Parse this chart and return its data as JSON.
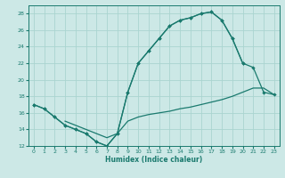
{
  "xlabel": "Humidex (Indice chaleur)",
  "bg_color": "#cce8e6",
  "grid_color": "#aad4d0",
  "line_color": "#1a7a6e",
  "xlim": [
    -0.5,
    23.5
  ],
  "ylim": [
    12,
    29
  ],
  "xticks": [
    0,
    1,
    2,
    3,
    4,
    5,
    6,
    7,
    8,
    9,
    10,
    11,
    12,
    13,
    14,
    15,
    16,
    17,
    18,
    19,
    20,
    21,
    22,
    23
  ],
  "yticks": [
    12,
    14,
    16,
    18,
    20,
    22,
    24,
    26,
    28
  ],
  "series1_x": [
    0,
    1,
    2,
    3,
    4,
    5,
    6,
    7,
    8,
    9,
    10,
    11,
    12,
    13,
    14,
    15,
    16,
    17,
    18,
    19,
    20
  ],
  "series1_y": [
    17,
    16.5,
    15.5,
    14.5,
    14,
    13.5,
    12.5,
    12,
    13.5,
    18.5,
    22,
    23.5,
    25,
    26.5,
    27.2,
    27.5,
    28,
    28.2,
    27.2,
    25,
    22
  ],
  "series2_x": [
    0,
    1,
    2,
    3,
    4,
    5,
    6,
    7,
    8,
    9,
    10,
    11,
    12,
    13,
    14,
    15,
    16,
    17,
    18,
    19,
    20,
    21,
    22,
    23
  ],
  "series2_y": [
    17,
    16.5,
    15.5,
    14.5,
    14,
    13.5,
    12.5,
    12,
    13.5,
    18.5,
    22,
    23.5,
    25,
    26.5,
    27.2,
    27.5,
    28,
    28.2,
    27.2,
    25,
    22,
    21.5,
    18.5,
    18.2
  ],
  "series3_x": [
    3,
    4,
    5,
    6,
    7,
    8,
    9,
    10,
    11,
    12,
    13,
    14,
    15,
    16,
    17,
    18,
    19,
    20,
    21,
    22,
    23
  ],
  "series3_y": [
    15,
    14.5,
    14,
    13.5,
    13,
    13.5,
    15,
    15.5,
    15.8,
    16.0,
    16.2,
    16.5,
    16.7,
    17.0,
    17.3,
    17.6,
    18,
    18.5,
    19,
    19,
    18.2
  ]
}
